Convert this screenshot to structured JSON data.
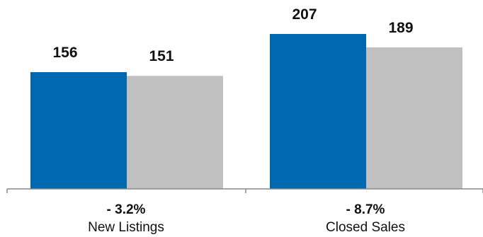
{
  "chart_data": {
    "type": "bar",
    "categories": [
      "New Listings",
      "Closed Sales"
    ],
    "changes": [
      "- 3.2%",
      "- 8.7%"
    ],
    "series": [
      {
        "values": [
          156,
          207
        ],
        "color": "#0067b1"
      },
      {
        "values": [
          151,
          189
        ],
        "color": "#c0c0c0"
      }
    ],
    "ylim": [
      0,
      207
    ],
    "grid": false,
    "legend": "none"
  }
}
